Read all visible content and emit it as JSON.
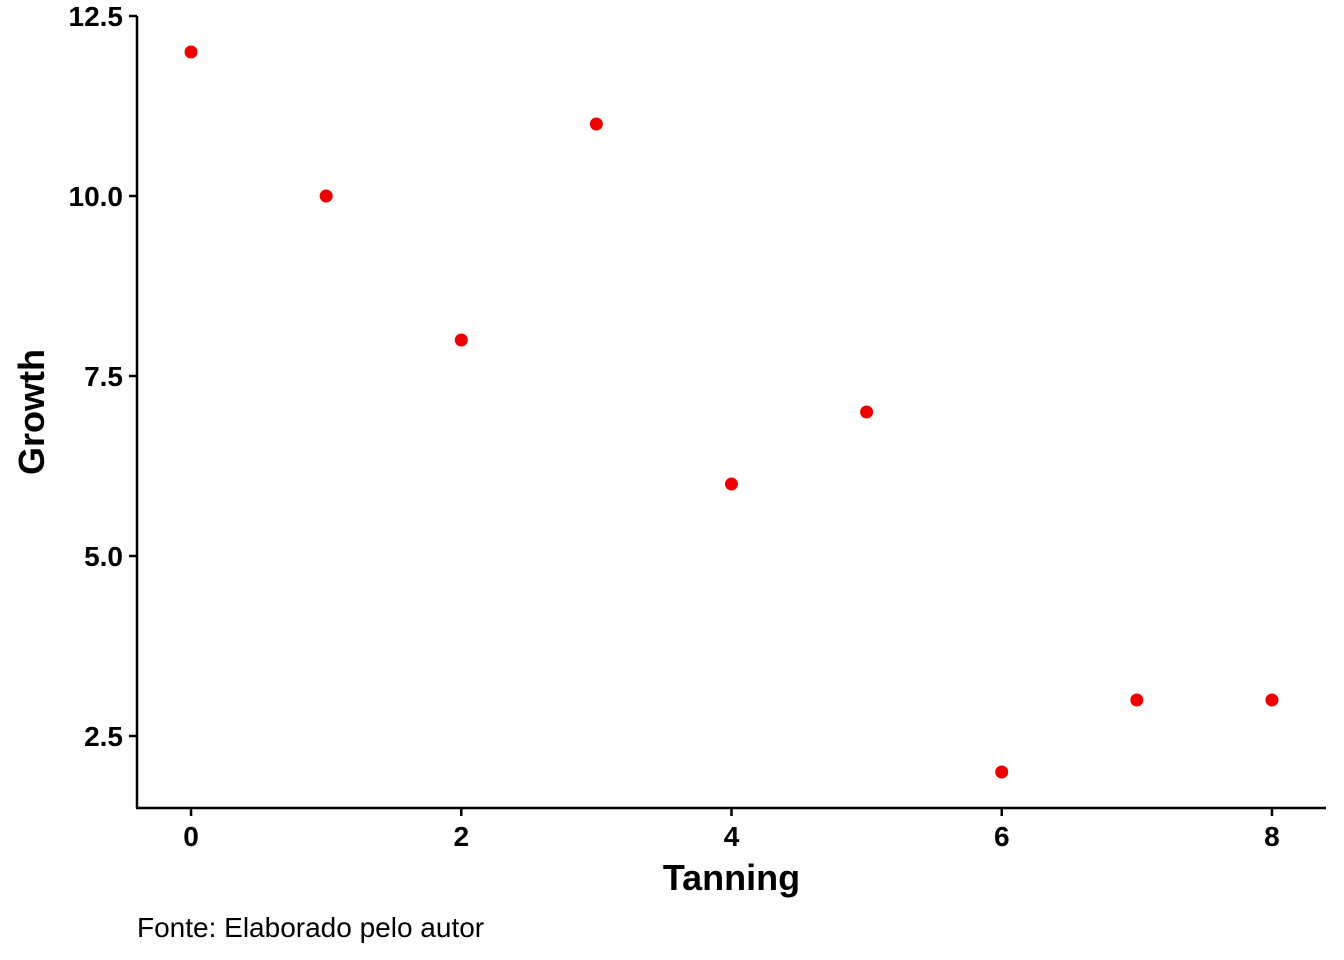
{
  "chart_data": {
    "type": "scatter",
    "xlabel": "Tanning",
    "ylabel": "Growth",
    "caption": "Fonte: Elaborado pelo autor",
    "x_ticks": [
      0,
      2,
      4,
      6,
      8
    ],
    "y_ticks": [
      2.5,
      5.0,
      7.5,
      10.0,
      12.5
    ],
    "y_tick_labels": [
      "2.5",
      "5.0",
      "7.5",
      "10.0",
      "12.5"
    ],
    "xlim": [
      -0.4,
      8.4
    ],
    "ylim": [
      1.5,
      12.5
    ],
    "grid": false,
    "point_color": "#ee0000",
    "axis_color": "#000000",
    "series": [
      {
        "x": [
          0,
          1,
          2,
          3,
          4,
          5,
          6,
          7,
          8
        ],
        "y": [
          12,
          10,
          8,
          11,
          6,
          7,
          2,
          3,
          3
        ]
      }
    ]
  }
}
